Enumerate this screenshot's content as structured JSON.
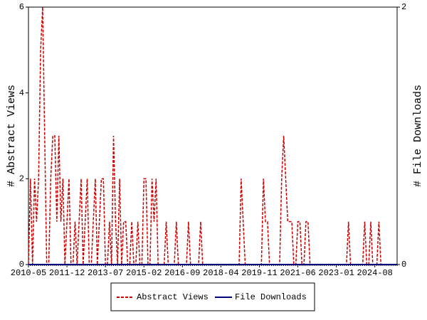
{
  "chart_data": {
    "type": "line",
    "y_label": "# Abstract Views",
    "y2_label": "# File Downloads",
    "categories": [
      "2010-05",
      null,
      null,
      null,
      null,
      null,
      null,
      null,
      null,
      null,
      null,
      null,
      null,
      null,
      null,
      null,
      null,
      null,
      null,
      "2011-12",
      null,
      null,
      null,
      null,
      null,
      null,
      null,
      null,
      null,
      null,
      null,
      null,
      null,
      null,
      null,
      null,
      null,
      null,
      "2013-07",
      null,
      null,
      null,
      null,
      null,
      null,
      null,
      null,
      null,
      null,
      null,
      null,
      null,
      null,
      null,
      null,
      null,
      null,
      "2015-02",
      null,
      null,
      null,
      null,
      null,
      null,
      null,
      null,
      null,
      null,
      null,
      null,
      null,
      null,
      null,
      null,
      null,
      null,
      "2016-09",
      null,
      null,
      null,
      null,
      null,
      null,
      null,
      null,
      null,
      null,
      null,
      null,
      null,
      null,
      null,
      null,
      null,
      null,
      "2018-04",
      null,
      null,
      null,
      null,
      null,
      null,
      null,
      null,
      null,
      null,
      null,
      null,
      null,
      null,
      null,
      null,
      null,
      null,
      "2019-11",
      null,
      null,
      null,
      null,
      null,
      null,
      null,
      null,
      null,
      null,
      null,
      null,
      null,
      null,
      null,
      null,
      null,
      null,
      "2021-06",
      null,
      null,
      null,
      null,
      null,
      null,
      null,
      null,
      null,
      null,
      null,
      null,
      null,
      null,
      null,
      null,
      null,
      null,
      "2023-01",
      null,
      null,
      null,
      null,
      null,
      null,
      null,
      null,
      null,
      null,
      null,
      null,
      null,
      null,
      null,
      null,
      null,
      null,
      "2024-08",
      null,
      null,
      null,
      null,
      null,
      null,
      null,
      null,
      null,
      null,
      null
    ],
    "series": [
      {
        "name": "Abstract Views",
        "color": "#cc0000",
        "dash": true,
        "values": [
          0,
          2,
          0,
          2,
          1,
          2,
          5,
          6,
          3,
          0,
          0,
          2,
          3,
          3,
          1,
          3,
          1,
          2,
          0,
          1,
          2,
          0,
          0,
          1,
          0,
          1,
          2,
          0,
          1,
          2,
          0,
          0,
          1,
          2,
          0,
          1,
          2,
          2,
          0,
          0,
          1,
          0,
          3,
          1,
          0,
          2,
          0,
          1,
          1,
          0,
          0,
          1,
          0,
          0,
          1,
          0,
          0,
          2,
          2,
          0,
          0,
          2,
          1,
          2,
          0,
          0,
          0,
          0,
          1,
          0,
          0,
          0,
          0,
          1,
          0,
          0,
          0,
          0,
          0,
          1,
          0,
          0,
          0,
          0,
          0,
          1,
          0,
          0,
          0,
          0,
          0,
          0,
          0,
          0,
          0,
          0,
          0,
          0,
          0,
          0,
          0,
          0,
          0,
          0,
          0,
          2,
          1,
          0,
          0,
          0,
          0,
          0,
          0,
          0,
          0,
          0,
          2,
          1,
          1,
          0,
          0,
          0,
          0,
          0,
          0,
          2,
          3,
          2,
          1,
          1,
          1,
          0,
          0,
          1,
          1,
          0,
          0,
          1,
          1,
          0,
          0,
          0,
          0,
          0,
          0,
          0,
          0,
          0,
          0,
          0,
          0,
          0,
          0,
          0,
          0,
          0,
          0,
          0,
          1,
          0,
          0,
          0,
          0,
          0,
          0,
          0,
          1,
          0,
          0,
          1,
          0,
          0,
          0,
          1,
          0,
          0,
          0,
          0,
          0,
          0,
          0,
          0,
          0
        ]
      },
      {
        "name": "File Downloads",
        "color": "#000080",
        "axis": "y2",
        "values": [
          0,
          0,
          0,
          0,
          0,
          0,
          0,
          0,
          0,
          0,
          0,
          0,
          0,
          0,
          0,
          0,
          0,
          0,
          0,
          0,
          0,
          0,
          0,
          0,
          0,
          0,
          0,
          0,
          0,
          0,
          0,
          0,
          0,
          0,
          0,
          0,
          0,
          0,
          0,
          0,
          0,
          0,
          0,
          0,
          0,
          0,
          0,
          0,
          0,
          0,
          0,
          0,
          0,
          0,
          0,
          0,
          0,
          0,
          0,
          0,
          0,
          0,
          0,
          0,
          0,
          0,
          0,
          0,
          0,
          0,
          0,
          0,
          0,
          0,
          0,
          0,
          0,
          0,
          0,
          0,
          0,
          0,
          0,
          0,
          0,
          0,
          0,
          0,
          0,
          0,
          0,
          0,
          0,
          0,
          0,
          0,
          0,
          0,
          0,
          0,
          0,
          0,
          0,
          0,
          0,
          0,
          0,
          0,
          0,
          0,
          0,
          0,
          0,
          0,
          0,
          0,
          0,
          0,
          0,
          0,
          0,
          0,
          0,
          0,
          0,
          0,
          0,
          0,
          0,
          0,
          0,
          0,
          0,
          0,
          0,
          0,
          0,
          0,
          0,
          0,
          0,
          0,
          0,
          0,
          0,
          0,
          0,
          0,
          0,
          0,
          0,
          0,
          0,
          0,
          0,
          0,
          0,
          0,
          0,
          0,
          0,
          0,
          0,
          0,
          0,
          0,
          0,
          0,
          0,
          0,
          0,
          0,
          0,
          0,
          0,
          0,
          0,
          0,
          0,
          0,
          0,
          0,
          0
        ]
      }
    ],
    "ylim": [
      0,
      6
    ],
    "yticks": [
      0,
      2,
      4,
      6
    ],
    "y2lim": [
      0,
      2
    ],
    "y2ticks": [
      0,
      2
    ],
    "legend": "bottom"
  }
}
